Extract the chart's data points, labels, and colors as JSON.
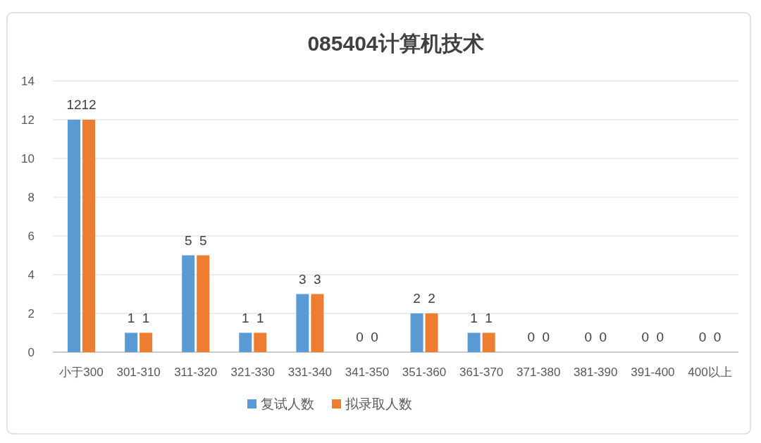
{
  "chart_data": {
    "type": "bar",
    "title": "085404计算机技术",
    "categories": [
      "小于300",
      "301-310",
      "311-320",
      "321-330",
      "331-340",
      "341-350",
      "351-360",
      "361-370",
      "371-380",
      "381-390",
      "391-400",
      "400以上"
    ],
    "series": [
      {
        "name": "复试人数",
        "color": "#5b9bd5",
        "values": [
          12,
          1,
          5,
          1,
          3,
          0,
          2,
          1,
          0,
          0,
          0,
          0
        ]
      },
      {
        "name": "拟录取人数",
        "color": "#ed7d31",
        "values": [
          12,
          1,
          5,
          1,
          3,
          0,
          2,
          1,
          0,
          0,
          0,
          0
        ]
      }
    ],
    "ylim": [
      0,
      14
    ],
    "yticks": [
      0,
      2,
      4,
      6,
      8,
      10,
      12,
      14
    ],
    "grid": "y",
    "legend": "bottom",
    "data_labels": true
  }
}
